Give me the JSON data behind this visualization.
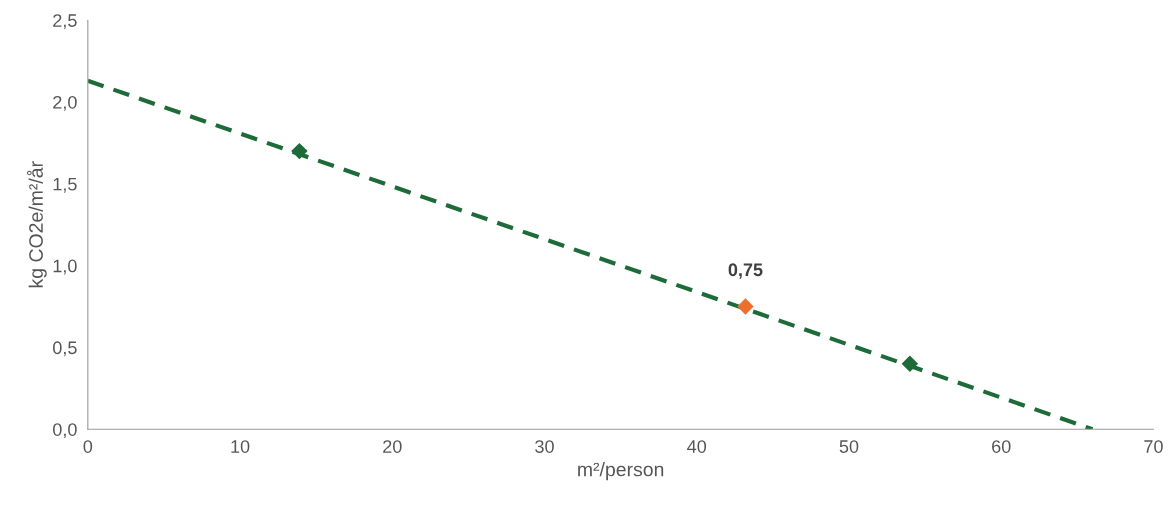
{
  "chart_data": {
    "type": "scatter",
    "xlabel": "m²/person",
    "ylabel": "kg CO2e/m²/år",
    "xlim": [
      0,
      70
    ],
    "xticks": [
      0,
      10,
      20,
      30,
      40,
      50,
      60,
      70
    ],
    "ylim": [
      0,
      2.5
    ],
    "yticks": [
      {
        "value": 0,
        "label": "0,0"
      },
      {
        "value": 0.5,
        "label": "0,5"
      },
      {
        "value": 1.0,
        "label": "1,0"
      },
      {
        "value": 1.5,
        "label": "1,5"
      },
      {
        "value": 2.0,
        "label": "2,0"
      },
      {
        "value": 2.5,
        "label": "2,5"
      }
    ],
    "grid": false,
    "legend": false,
    "marker": "diamond",
    "series": [
      {
        "type": "line",
        "line_style": "dashed",
        "marker": "none",
        "color": "#1e6b3a",
        "x": [
          0,
          66
        ],
        "values": [
          2.13,
          0
        ]
      },
      {
        "color": "#1e6b3a",
        "x": [
          13.9,
          54
        ],
        "values": [
          1.7,
          0.4
        ]
      },
      {
        "color": "#ec6f2d",
        "x": [
          43.2
        ],
        "values": [
          0.75
        ],
        "value_labels": [
          "0,75"
        ]
      }
    ]
  }
}
